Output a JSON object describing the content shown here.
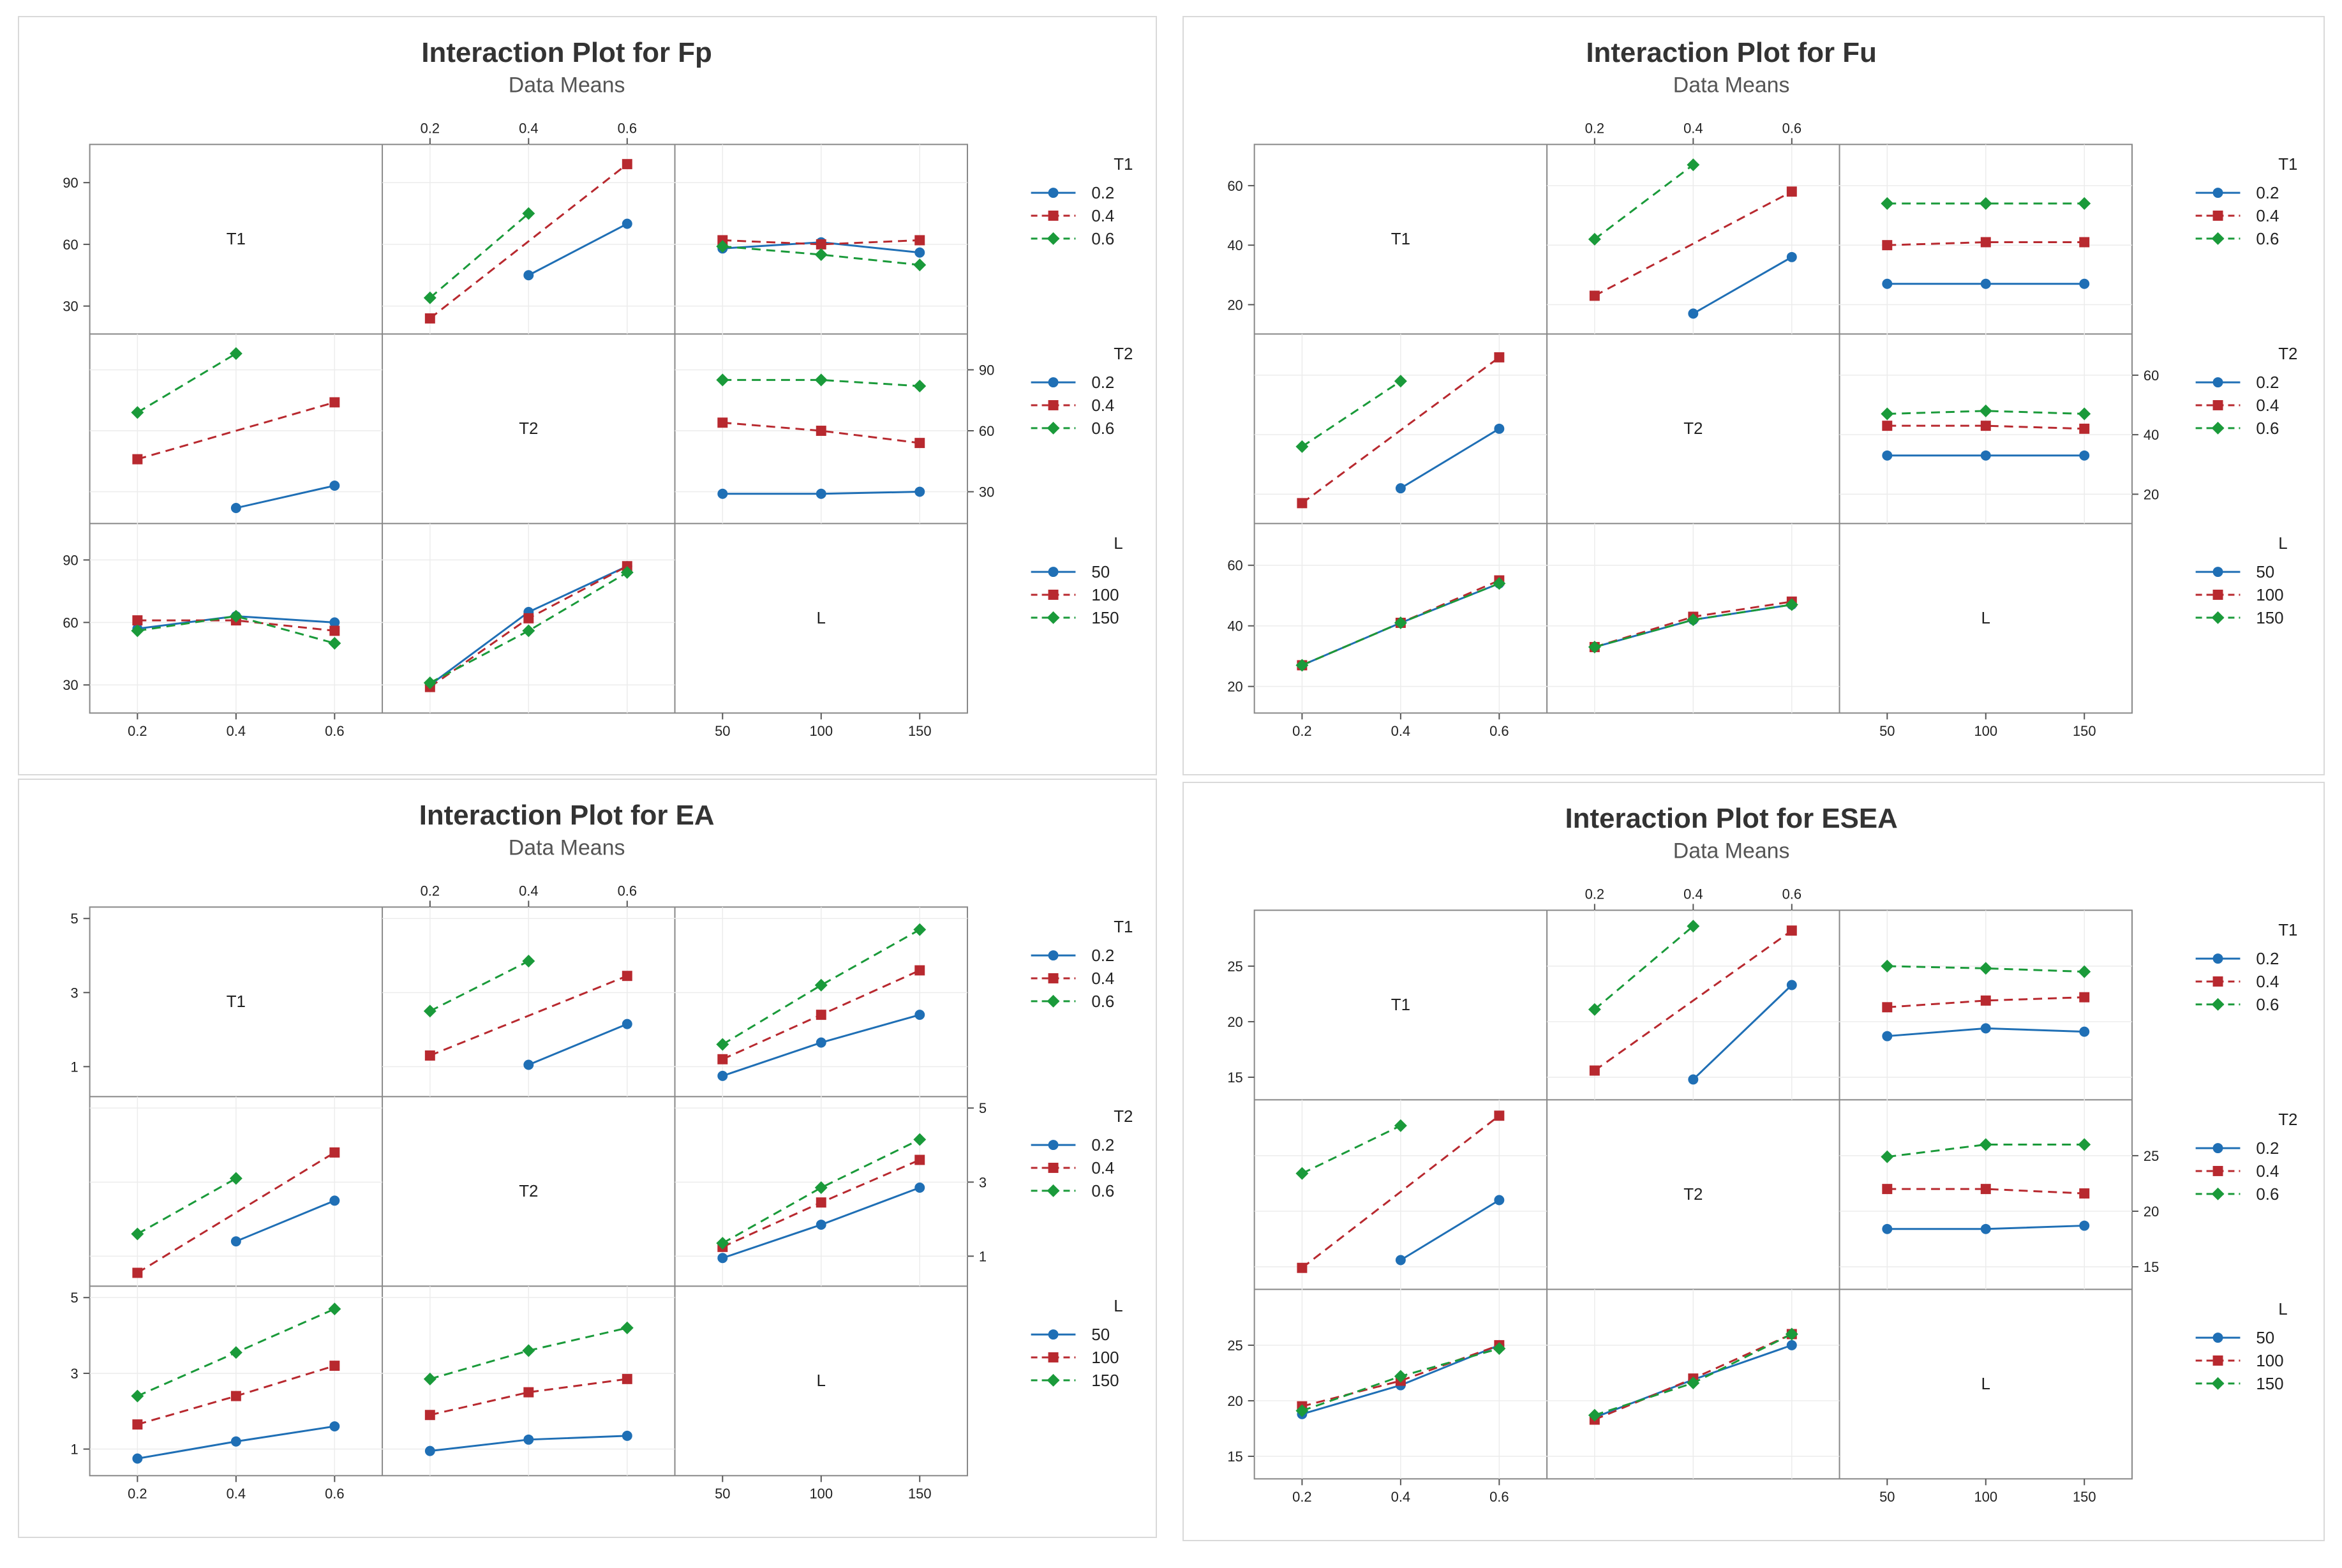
{
  "colors": {
    "series": [
      "#1f6fb5",
      "#b8292f",
      "#1a9a3a"
    ]
  },
  "chart_data": [
    {
      "type": "line",
      "title": "Interaction Plot for Fp",
      "subtitle": "Data Means",
      "factors": [
        {
          "name": "T1",
          "levels": [
            "0.2",
            "0.4",
            "0.6"
          ]
        },
        {
          "name": "T2",
          "levels": [
            "0.2",
            "0.4",
            "0.6"
          ]
        },
        {
          "name": "L",
          "levels": [
            "50",
            "100",
            "150"
          ]
        }
      ],
      "top_ticks": [
        "0.2",
        "0.4",
        "0.6"
      ],
      "bottom_ticks": [
        [
          "0.2",
          "0.4",
          "0.6"
        ],
        [],
        [
          "50",
          "100",
          "150"
        ]
      ],
      "y_ticks": [
        [
          "30",
          "60",
          "90"
        ],
        [
          "30",
          "60",
          "90"
        ],
        [
          "30",
          "60",
          "90"
        ]
      ],
      "ylim": [
        [
          22,
          103
        ],
        [
          20,
          102
        ],
        [
          22,
          102
        ]
      ],
      "legends": [
        {
          "title": "T1",
          "items": [
            "0.2",
            "0.4",
            "0.6"
          ]
        },
        {
          "title": "T2",
          "items": [
            "0.2",
            "0.4",
            "0.6"
          ]
        },
        {
          "title": "L",
          "items": [
            "50",
            "100",
            "150"
          ]
        }
      ],
      "cells": [
        {
          "row": 0,
          "col": 1,
          "series": [
            [
              null,
              45,
              70
            ],
            [
              24,
              null,
              99
            ],
            [
              34,
              75,
              null
            ]
          ]
        },
        {
          "row": 0,
          "col": 2,
          "series": [
            [
              58,
              61,
              56
            ],
            [
              62,
              60,
              62
            ],
            [
              59,
              55,
              50
            ]
          ]
        },
        {
          "row": 1,
          "col": 0,
          "series": [
            [
              null,
              22,
              33
            ],
            [
              46,
              null,
              74
            ],
            [
              69,
              98,
              null
            ]
          ]
        },
        {
          "row": 1,
          "col": 2,
          "series": [
            [
              29,
              29,
              30
            ],
            [
              64,
              60,
              54
            ],
            [
              85,
              85,
              82
            ]
          ]
        },
        {
          "row": 2,
          "col": 0,
          "series": [
            [
              57,
              63,
              60
            ],
            [
              61,
              61,
              56
            ],
            [
              56,
              63,
              50
            ]
          ]
        },
        {
          "row": 2,
          "col": 1,
          "series": [
            [
              30,
              65,
              87
            ],
            [
              29,
              62,
              87
            ],
            [
              31,
              56,
              84
            ]
          ]
        }
      ]
    },
    {
      "type": "line",
      "title": "Interaction Plot for Fu",
      "subtitle": "Data Means",
      "factors": [
        {
          "name": "T1",
          "levels": [
            "0.2",
            "0.4",
            "0.6"
          ]
        },
        {
          "name": "T2",
          "levels": [
            "0.2",
            "0.4",
            "0.6"
          ]
        },
        {
          "name": "L",
          "levels": [
            "50",
            "100",
            "150"
          ]
        }
      ],
      "top_ticks": [
        "0.2",
        "0.4",
        "0.6"
      ],
      "bottom_ticks": [
        [
          "0.2",
          "0.4",
          "0.6"
        ],
        [],
        [
          "50",
          "100",
          "150"
        ]
      ],
      "y_ticks": [
        [
          "20",
          "40",
          "60"
        ],
        [
          "20",
          "40",
          "60"
        ],
        [
          "20",
          "40",
          "60"
        ]
      ],
      "ylim": [
        [
          14,
          70
        ],
        [
          14,
          70
        ],
        [
          15,
          70
        ]
      ],
      "legends": [
        {
          "title": "T1",
          "items": [
            "0.2",
            "0.4",
            "0.6"
          ]
        },
        {
          "title": "T2",
          "items": [
            "0.2",
            "0.4",
            "0.6"
          ]
        },
        {
          "title": "L",
          "items": [
            "50",
            "100",
            "150"
          ]
        }
      ],
      "cells": [
        {
          "row": 0,
          "col": 1,
          "series": [
            [
              null,
              17,
              36
            ],
            [
              23,
              null,
              58
            ],
            [
              42,
              67,
              null
            ]
          ]
        },
        {
          "row": 0,
          "col": 2,
          "series": [
            [
              27,
              27,
              27
            ],
            [
              40,
              41,
              41
            ],
            [
              54,
              54,
              54
            ]
          ]
        },
        {
          "row": 1,
          "col": 0,
          "series": [
            [
              null,
              22,
              42
            ],
            [
              17,
              null,
              66
            ],
            [
              36,
              58,
              null
            ]
          ]
        },
        {
          "row": 1,
          "col": 2,
          "series": [
            [
              33,
              33,
              33
            ],
            [
              43,
              43,
              42
            ],
            [
              47,
              48,
              47
            ]
          ]
        },
        {
          "row": 2,
          "col": 0,
          "series": [
            [
              27,
              41,
              54
            ],
            [
              27,
              41,
              55
            ],
            [
              27,
              41,
              54
            ]
          ]
        },
        {
          "row": 2,
          "col": 1,
          "series": [
            [
              33,
              42,
              47
            ],
            [
              33,
              43,
              48
            ],
            [
              33,
              42,
              47
            ]
          ]
        }
      ]
    },
    {
      "type": "line",
      "title": "Interaction Plot for EA",
      "subtitle": "Data Means",
      "factors": [
        {
          "name": "T1",
          "levels": [
            "0.2",
            "0.4",
            "0.6"
          ]
        },
        {
          "name": "T2",
          "levels": [
            "0.2",
            "0.4",
            "0.6"
          ]
        },
        {
          "name": "L",
          "levels": [
            "50",
            "100",
            "150"
          ]
        }
      ],
      "top_ticks": [
        "0.2",
        "0.4",
        "0.6"
      ],
      "bottom_ticks": [
        [
          "0.2",
          "0.4",
          "0.6"
        ],
        [],
        [
          "50",
          "100",
          "150"
        ]
      ],
      "y_ticks": [
        [
          "1",
          "3",
          "5"
        ],
        [
          "1",
          "3",
          "5"
        ],
        [
          "1",
          "3",
          "5"
        ]
      ],
      "ylim": [
        [
          0.5,
          5.0
        ],
        [
          0.5,
          5.0
        ],
        [
          0.6,
          5.0
        ]
      ],
      "legends": [
        {
          "title": "T1",
          "items": [
            "0.2",
            "0.4",
            "0.6"
          ]
        },
        {
          "title": "T2",
          "items": [
            "0.2",
            "0.4",
            "0.6"
          ]
        },
        {
          "title": "L",
          "items": [
            "50",
            "100",
            "150"
          ]
        }
      ],
      "cells": [
        {
          "row": 0,
          "col": 1,
          "series": [
            [
              null,
              1.05,
              2.15
            ],
            [
              1.3,
              null,
              3.45
            ],
            [
              2.5,
              3.85,
              null
            ]
          ]
        },
        {
          "row": 0,
          "col": 2,
          "series": [
            [
              0.75,
              1.65,
              2.4
            ],
            [
              1.2,
              2.4,
              3.6
            ],
            [
              1.6,
              3.2,
              4.7
            ]
          ]
        },
        {
          "row": 1,
          "col": 0,
          "series": [
            [
              null,
              1.4,
              2.5
            ],
            [
              0.55,
              null,
              3.8
            ],
            [
              1.6,
              3.1,
              null
            ]
          ]
        },
        {
          "row": 1,
          "col": 2,
          "series": [
            [
              0.95,
              1.85,
              2.85
            ],
            [
              1.25,
              2.45,
              3.6
            ],
            [
              1.35,
              2.85,
              4.15
            ]
          ]
        },
        {
          "row": 2,
          "col": 0,
          "series": [
            [
              0.75,
              1.2,
              1.6
            ],
            [
              1.65,
              2.4,
              3.2
            ],
            [
              2.4,
              3.55,
              4.7
            ]
          ]
        },
        {
          "row": 2,
          "col": 1,
          "series": [
            [
              0.95,
              1.25,
              1.35
            ],
            [
              1.9,
              2.5,
              2.85
            ],
            [
              2.85,
              3.6,
              4.2
            ]
          ]
        }
      ]
    },
    {
      "type": "line",
      "title": "Interaction Plot for ESEA",
      "subtitle": "Data Means",
      "factors": [
        {
          "name": "T1",
          "levels": [
            "0.2",
            "0.4",
            "0.6"
          ]
        },
        {
          "name": "T2",
          "levels": [
            "0.2",
            "0.4",
            "0.6"
          ]
        },
        {
          "name": "L",
          "levels": [
            "50",
            "100",
            "150"
          ]
        }
      ],
      "top_ticks": [
        "0.2",
        "0.4",
        "0.6"
      ],
      "bottom_ticks": [
        [
          "0.2",
          "0.4",
          "0.6"
        ],
        [],
        [
          "50",
          "100",
          "150"
        ]
      ],
      "y_ticks": [
        [
          "15",
          "20",
          "25"
        ],
        [
          "15",
          "20",
          "25"
        ],
        [
          "15",
          "20",
          "25"
        ]
      ],
      "ylim": [
        [
          14,
          29
        ],
        [
          14,
          29
        ],
        [
          14,
          29
        ]
      ],
      "legends": [
        {
          "title": "T1",
          "items": [
            "0.2",
            "0.4",
            "0.6"
          ]
        },
        {
          "title": "T2",
          "items": [
            "0.2",
            "0.4",
            "0.6"
          ]
        },
        {
          "title": "L",
          "items": [
            "50",
            "100",
            "150"
          ]
        }
      ],
      "cells": [
        {
          "row": 0,
          "col": 1,
          "series": [
            [
              null,
              14.8,
              23.3
            ],
            [
              15.6,
              null,
              28.2
            ],
            [
              21.1,
              28.6,
              null
            ]
          ]
        },
        {
          "row": 0,
          "col": 2,
          "series": [
            [
              18.7,
              19.4,
              19.1
            ],
            [
              21.3,
              21.9,
              22.2
            ],
            [
              25,
              24.8,
              24.5
            ]
          ]
        },
        {
          "row": 1,
          "col": 0,
          "series": [
            [
              null,
              15.6,
              21.0
            ],
            [
              14.9,
              null,
              28.6
            ],
            [
              23.4,
              27.7,
              null
            ]
          ]
        },
        {
          "row": 1,
          "col": 2,
          "series": [
            [
              18.4,
              18.4,
              18.7
            ],
            [
              22.0,
              22.0,
              21.6
            ],
            [
              24.9,
              26.0,
              26.0
            ]
          ]
        },
        {
          "row": 2,
          "col": 0,
          "series": [
            [
              18.8,
              21.4,
              25.0
            ],
            [
              19.5,
              21.8,
              25.0
            ],
            [
              19.1,
              22.2,
              24.7
            ]
          ]
        },
        {
          "row": 2,
          "col": 1,
          "series": [
            [
              18.5,
              21.9,
              25.0
            ],
            [
              18.3,
              22.0,
              26.0
            ],
            [
              18.7,
              21.6,
              26.0
            ]
          ]
        }
      ]
    }
  ]
}
